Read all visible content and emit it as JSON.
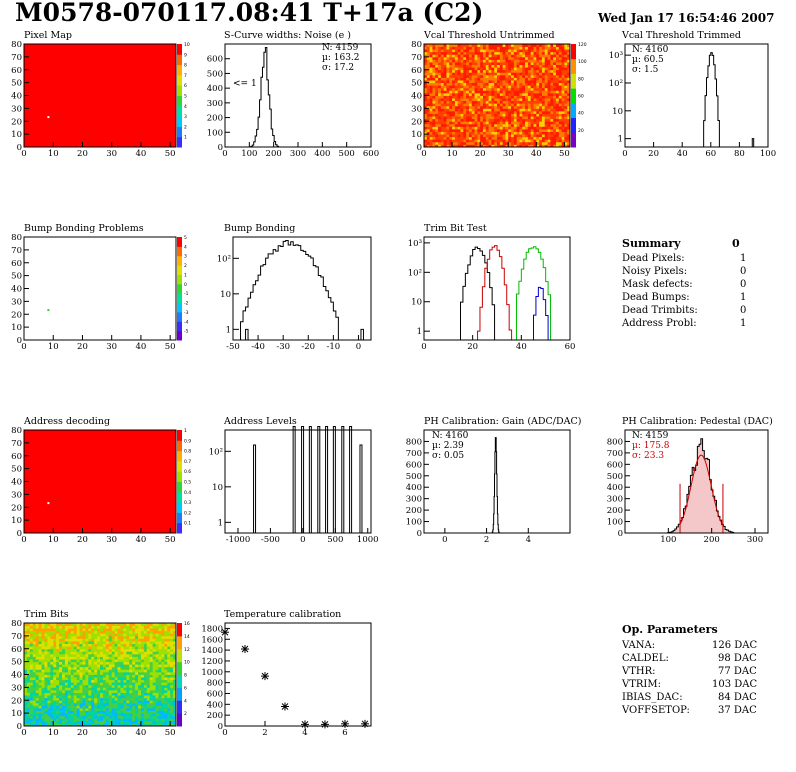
{
  "header": {
    "title": "M0578-070117.08:41 T+17a (C2)",
    "date": "Wed Jan 17 16:54:46 2007"
  },
  "colors": {
    "map_fill": "#ff0000",
    "palette": [
      "#6a00d0",
      "#3b2cff",
      "#1e7bff",
      "#00c8ff",
      "#00e0a0",
      "#33d633",
      "#9ee000",
      "#e0e000",
      "#ffb000",
      "#ff6a00",
      "#ff0000"
    ]
  },
  "summary": {
    "title": "Summary",
    "total": "0",
    "rows": [
      {
        "label": "Dead Pixels:",
        "value": "1"
      },
      {
        "label": "Noisy Pixels:",
        "value": "0"
      },
      {
        "label": "Mask defects:",
        "value": "0"
      },
      {
        "label": "Dead Bumps:",
        "value": "1"
      },
      {
        "label": "Dead Trimbits:",
        "value": "0"
      },
      {
        "label": "Address Probl:",
        "value": "1"
      }
    ]
  },
  "op_params": {
    "title": "Op. Parameters",
    "rows": [
      {
        "label": "VANA:",
        "value": "126 DAC"
      },
      {
        "label": "CALDEL:",
        "value": "98 DAC"
      },
      {
        "label": "VTHR:",
        "value": "77 DAC"
      },
      {
        "label": "VTRIM:",
        "value": "103 DAC"
      },
      {
        "label": "IBIAS_DAC:",
        "value": "84 DAC"
      },
      {
        "label": "VOFFSETOP:",
        "value": "37 DAC"
      }
    ]
  },
  "chart_data": [
    {
      "id": "pixel_map",
      "type": "heatmap",
      "title": "Pixel Map",
      "xlim": [
        0,
        52
      ],
      "ylim": [
        0,
        80
      ],
      "xticks": [
        "0",
        "10",
        "20",
        "30",
        "40",
        "50"
      ],
      "yticks": [
        "0",
        "10",
        "20",
        "30",
        "40",
        "50",
        "60",
        "70",
        "80"
      ],
      "fill": "uniform red (value 10)",
      "marker": {
        "x": 8,
        "y": 24,
        "color": "#ffffff"
      },
      "colorbar": [
        "1",
        "2",
        "3",
        "4",
        "5",
        "6",
        "7",
        "8",
        "9",
        "10"
      ]
    },
    {
      "id": "scurve",
      "type": "bar",
      "title": "S-Curve widths: Noise (e )",
      "xlim": [
        0,
        600
      ],
      "ylim": [
        0,
        700
      ],
      "xticks": [
        "0",
        "100",
        "200",
        "300",
        "400",
        "500",
        "600"
      ],
      "yticks": [
        "0",
        "100",
        "200",
        "300",
        "400",
        "500",
        "600"
      ],
      "stats": [
        "N: 4159",
        "µ: 163.2",
        "σ: 17.2"
      ],
      "annotation": "<= 1",
      "mean": 163.2,
      "sigma": 17.2,
      "peak": 640
    },
    {
      "id": "vcal_untrimmed",
      "type": "heatmap",
      "title": "Vcal Threshold Untrimmed",
      "xlim": [
        0,
        52
      ],
      "ylim": [
        0,
        80
      ],
      "xticks": [
        "0",
        "10",
        "20",
        "30",
        "40",
        "50"
      ],
      "yticks": [
        "0",
        "10",
        "20",
        "30",
        "40",
        "50",
        "60",
        "70",
        "80"
      ],
      "colorbar": [
        "20",
        "40",
        "60",
        "80",
        "100",
        "120"
      ]
    },
    {
      "id": "vcal_trimmed",
      "type": "bar",
      "title": "Vcal Threshold Trimmed",
      "log": true,
      "xlim": [
        0,
        100
      ],
      "xticks": [
        "0",
        "20",
        "40",
        "60",
        "80",
        "100"
      ],
      "yticks": [
        "1",
        "10",
        "10²",
        "10³"
      ],
      "stats": [
        "N: 4160",
        "µ: 60.5",
        "σ: 1.5"
      ],
      "mean": 60.5,
      "sigma": 1.5,
      "peak": 1100,
      "outliers": [
        {
          "x": 89,
          "y": 1
        }
      ]
    },
    {
      "id": "bump_problems",
      "type": "heatmap",
      "title": "Bump Bonding Problems",
      "xlim": [
        0,
        52
      ],
      "ylim": [
        0,
        80
      ],
      "xticks": [
        "0",
        "10",
        "20",
        "30",
        "40",
        "50"
      ],
      "yticks": [
        "0",
        "10",
        "20",
        "30",
        "40",
        "50",
        "60",
        "70",
        "80"
      ],
      "fill": "empty",
      "marker": {
        "x": 8,
        "y": 24,
        "color": "#33cc33"
      },
      "colorbar": [
        "-5",
        "-4",
        "-3",
        "-2",
        "-1",
        "0",
        "1",
        "2",
        "3",
        "4",
        "5"
      ]
    },
    {
      "id": "bump_bonding",
      "type": "bar",
      "title": "Bump Bonding",
      "log": true,
      "xlim": [
        -50,
        5
      ],
      "xticks": [
        "-50",
        "-40",
        "-30",
        "-20",
        "-10",
        "0"
      ],
      "yticks": [
        "1",
        "10",
        "10²"
      ],
      "mean": -28,
      "sigma": 6,
      "peak": 280,
      "outliers": [
        {
          "x": 1,
          "y": 1
        },
        {
          "x": -45,
          "y": 1
        }
      ]
    },
    {
      "id": "trim_bit_test",
      "type": "bar",
      "title": "Trim Bit Test",
      "log": true,
      "xlim": [
        0,
        60
      ],
      "xticks": [
        "0",
        "20",
        "40",
        "60"
      ],
      "yticks": [
        "1",
        "10",
        "10²",
        "10³"
      ],
      "series": [
        {
          "name": "",
          "color": "#000000",
          "mean": 22,
          "sigma": 2.2,
          "peak": 700
        },
        {
          "name": "",
          "color": "#cc0000",
          "mean": 29,
          "sigma": 1.8,
          "peak": 800
        },
        {
          "name": "",
          "color": "#00bb00",
          "mean": 45,
          "sigma": 2.4,
          "peak": 750
        },
        {
          "name": "",
          "color": "#0000cc",
          "mean": 48,
          "sigma": 1.2,
          "peak": 30
        }
      ]
    },
    {
      "id": "address_decoding",
      "type": "heatmap",
      "title": "Address decoding",
      "xlim": [
        0,
        52
      ],
      "ylim": [
        0,
        80
      ],
      "xticks": [
        "0",
        "10",
        "20",
        "30",
        "40",
        "50"
      ],
      "yticks": [
        "0",
        "10",
        "20",
        "30",
        "40",
        "50",
        "60",
        "70",
        "80"
      ],
      "fill": "uniform red (value 1)",
      "marker": {
        "x": 8,
        "y": 24,
        "color": "#ffffff"
      },
      "colorbar": [
        "0.1",
        "0.2",
        "0.3",
        "0.4",
        "0.5",
        "0.6",
        "0.7",
        "0.8",
        "0.9",
        "1"
      ]
    },
    {
      "id": "address_levels",
      "type": "bar",
      "title": "Address Levels",
      "log": true,
      "xlim": [
        -1200,
        1050
      ],
      "xticks": [
        "-1000",
        "-500",
        "0",
        "500",
        "1000"
      ],
      "yticks": [
        "1",
        "10",
        "10²"
      ],
      "peaks": [
        -760,
        -150,
        -20,
        100,
        230,
        350,
        470,
        600,
        720,
        880
      ]
    },
    {
      "id": "ph_gain",
      "type": "bar",
      "title": "PH Calibration: Gain (ADC/DAC)",
      "xlim": [
        -1,
        6
      ],
      "ylim": [
        0,
        900
      ],
      "xticks": [
        "0",
        "2",
        "4"
      ],
      "yticks": [
        "0",
        "100",
        "200",
        "300",
        "400",
        "500",
        "600",
        "700",
        "800"
      ],
      "stats": [
        "N: 4160",
        "µ: 2.39",
        "σ: 0.05"
      ],
      "mean": 2.39,
      "sigma": 0.05,
      "peak": 850
    },
    {
      "id": "ph_pedestal",
      "type": "bar",
      "title": "PH Calibration: Pedestal (DAC)",
      "xlim": [
        0,
        330
      ],
      "ylim": [
        0,
        900
      ],
      "xticks": [
        "100",
        "200",
        "300"
      ],
      "yticks": [
        "0",
        "100",
        "200",
        "300",
        "400",
        "500",
        "600",
        "700",
        "800"
      ],
      "stats": [
        "N: 4159",
        "µ: 175.8",
        "σ: 23.3"
      ],
      "mean": 175.8,
      "sigma": 23.3,
      "peak": 740,
      "fit_color": "#cc0000",
      "markers": [
        127,
        226
      ]
    },
    {
      "id": "trim_bits",
      "type": "heatmap",
      "title": "Trim Bits",
      "xlim": [
        0,
        52
      ],
      "ylim": [
        0,
        80
      ],
      "xticks": [
        "0",
        "10",
        "20",
        "30",
        "40",
        "50"
      ],
      "yticks": [
        "0",
        "10",
        "20",
        "30",
        "40",
        "50",
        "60",
        "70",
        "80"
      ],
      "colorbar": [
        "2",
        "4",
        "6",
        "8",
        "10",
        "12",
        "14",
        "16"
      ]
    },
    {
      "id": "temperature",
      "type": "scatter",
      "title": "Temperature calibration",
      "xlim": [
        0,
        7.3
      ],
      "ylim": [
        0,
        1900
      ],
      "xticks": [
        "0",
        "2",
        "4",
        "6"
      ],
      "yticks": [
        "0",
        "200",
        "400",
        "600",
        "800",
        "1000",
        "1200",
        "1400",
        "1600",
        "1800"
      ],
      "x": [
        0,
        1,
        2,
        3,
        4,
        5,
        6,
        7
      ],
      "y": [
        1730,
        1420,
        920,
        360,
        30,
        30,
        40,
        40
      ]
    }
  ]
}
